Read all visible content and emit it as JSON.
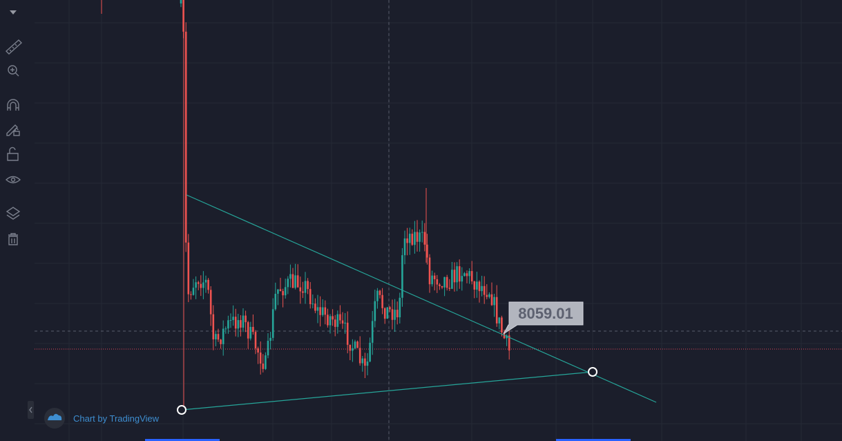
{
  "price_label": "8059.01",
  "watermark": "Chart by TradingView"
}
